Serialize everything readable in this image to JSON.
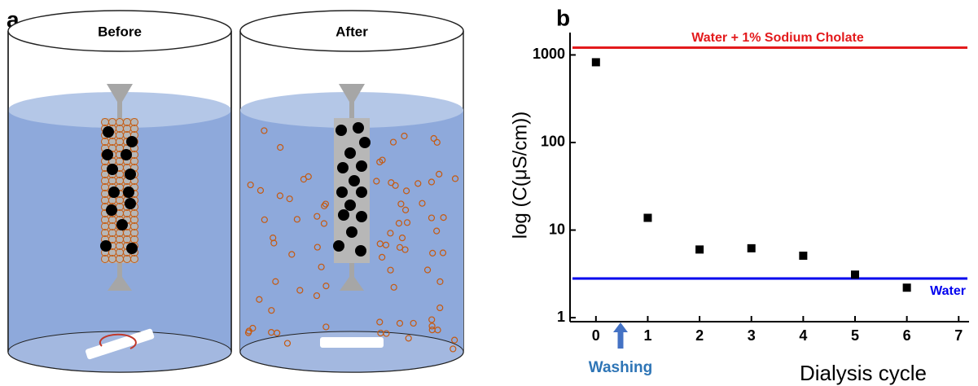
{
  "panel_a": {
    "label": "a",
    "beaker_labels": [
      "Before",
      "After"
    ]
  },
  "chart_data": {
    "type": "scatter",
    "panel_label": "b",
    "x": [
      0,
      1,
      2,
      3,
      4,
      5,
      6
    ],
    "values": [
      825,
      13.8,
      6.0,
      6.2,
      5.1,
      3.1,
      2.2
    ],
    "color": "#000000",
    "reference_lines": [
      {
        "name": "Water + 1% Sodium Cholate",
        "value": 1210,
        "color": "#e31a1c"
      },
      {
        "name": "Water",
        "value": 2.8,
        "color": "#0000ee"
      }
    ],
    "xlabel": "Dialysis cycle",
    "ylabel": "log (C(μS/cm))",
    "washing_label": "Washing",
    "xlim": [
      -0.5,
      7.2
    ],
    "xticks": [
      0,
      1,
      2,
      3,
      4,
      5,
      6,
      7
    ],
    "ylim": [
      0.9,
      1800
    ],
    "yticks": [
      1,
      10,
      100,
      1000
    ],
    "log_scale": true
  }
}
